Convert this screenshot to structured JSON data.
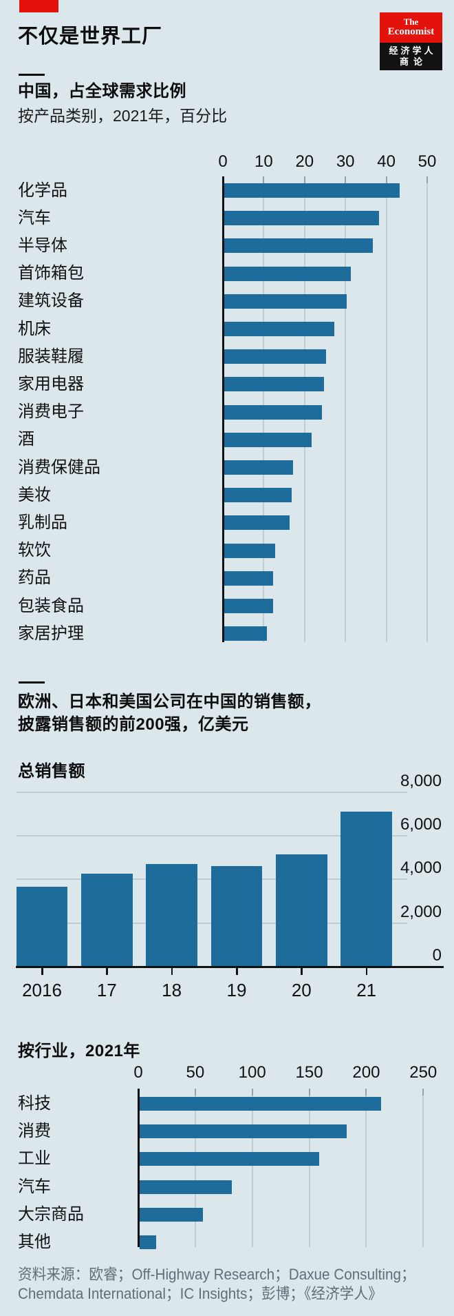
{
  "header": {
    "title": "不仅是世界工厂"
  },
  "logo": {
    "the": "The",
    "economist": "Economist",
    "cn_line1": "经济学人",
    "cn_line2": "商论"
  },
  "colors": {
    "background": "#DCE7EB",
    "bar_blue": "#1D6C9C",
    "accent_red": "#E3120B",
    "gridline": "#BFCCD1",
    "source_text": "#5F6E78"
  },
  "chart_data": [
    {
      "id": "china-share-of-global-demand",
      "type": "bar",
      "orientation": "horizontal",
      "title": "中国，占全球需求比例",
      "subtitle": "按产品类别，2021年，百分比",
      "xlim": [
        0,
        50
      ],
      "xticks": [
        0,
        10,
        20,
        30,
        40,
        50
      ],
      "grid": true,
      "categories": [
        "化学品",
        "汽车",
        "半导体",
        "首饰箱包",
        "建筑设备",
        "机床",
        "服装鞋履",
        "家用电器",
        "消费电子",
        "酒",
        "消费保健品",
        "美妆",
        "乳制品",
        "软饮",
        "药品",
        "包装食品",
        "家居护理"
      ],
      "values": [
        43,
        38,
        36.5,
        31,
        30,
        27,
        25,
        24.5,
        24,
        21.5,
        17,
        16.5,
        16,
        12.5,
        12,
        12,
        10.5
      ]
    },
    {
      "id": "total-sales-in-china",
      "type": "bar",
      "orientation": "vertical",
      "section_title": [
        "欧洲、日本和美国公司在中国的销售额，",
        "披露销售额的前200强，亿美元"
      ],
      "title": "总销售额",
      "categories": [
        "2016",
        "17",
        "18",
        "19",
        "20",
        "21"
      ],
      "values": [
        3650,
        4250,
        4700,
        4600,
        5150,
        7100
      ],
      "ylim": [
        0,
        8000
      ],
      "yticks": [
        8000,
        6000,
        4000,
        2000,
        0
      ],
      "ytick_labels": [
        "8,000",
        "6,000",
        "4,000",
        "2,000",
        "0"
      ],
      "grid": true,
      "legend": "none"
    },
    {
      "id": "sales-by-industry",
      "type": "bar",
      "orientation": "horizontal",
      "title": "按行业，2021年",
      "xlim": [
        0,
        250
      ],
      "xticks": [
        0,
        50,
        100,
        150,
        200,
        250
      ],
      "grid": true,
      "categories": [
        "科技",
        "消费",
        "工业",
        "汽车",
        "大宗商品",
        "其他"
      ],
      "values": [
        212,
        182,
        158,
        81,
        56,
        15
      ]
    }
  ],
  "source": {
    "line1": "资料来源：欧睿；Off-Highway Research；Daxue Consulting；",
    "line2": "Chemdata International；IC Insights；彭博；《经济学人》"
  }
}
